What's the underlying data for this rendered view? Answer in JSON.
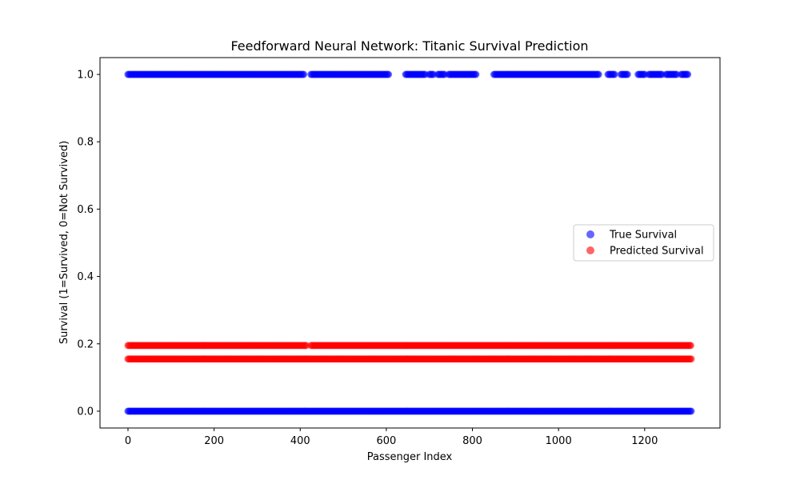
{
  "chart_data": {
    "type": "scatter",
    "title": "Feedforward Neural Network: Titanic Survival Prediction",
    "xlabel": "Passenger Index",
    "ylabel": "Survival (1=Survived, 0=Not Survived)",
    "xlim": [
      -65,
      1375
    ],
    "ylim": [
      -0.05,
      1.05
    ],
    "xticks": [
      0,
      200,
      400,
      600,
      800,
      1000,
      1200
    ],
    "xtick_labels": [
      "0",
      "200",
      "400",
      "600",
      "800",
      "1000",
      "1200"
    ],
    "yticks": [
      0.0,
      0.2,
      0.4,
      0.6,
      0.8,
      1.0
    ],
    "ytick_labels": [
      "0.0",
      "0.2",
      "0.4",
      "0.6",
      "0.8",
      "1.0"
    ],
    "grid": false,
    "legend_position": "center-right",
    "x_range": [
      0,
      1308
    ],
    "series": [
      {
        "name": "True Survival",
        "color": "#0000ff",
        "alpha": 0.6,
        "levels": [
          {
            "y": 0.0,
            "x_segments": [
              [
                0,
                1308
              ]
            ]
          },
          {
            "y": 1.0,
            "x_segments": [
              [
                0,
                410
              ],
              [
                425,
                605
              ],
              [
                645,
                690
              ],
              [
                700,
                710
              ],
              [
                720,
                735
              ],
              [
                745,
                810
              ],
              [
                850,
                1095
              ],
              [
                1115,
                1130
              ],
              [
                1145,
                1160
              ],
              [
                1185,
                1200
              ],
              [
                1210,
                1240
              ],
              [
                1250,
                1275
              ],
              [
                1285,
                1300
              ]
            ]
          }
        ]
      },
      {
        "name": "Predicted Survival",
        "color": "#ff0000",
        "alpha": 0.6,
        "levels": [
          {
            "y": 0.155,
            "x_segments": [
              [
                0,
                1308
              ]
            ]
          },
          {
            "y": 0.195,
            "x_segments": [
              [
                0,
                415
              ],
              [
                425,
                1308
              ]
            ]
          }
        ]
      }
    ]
  }
}
